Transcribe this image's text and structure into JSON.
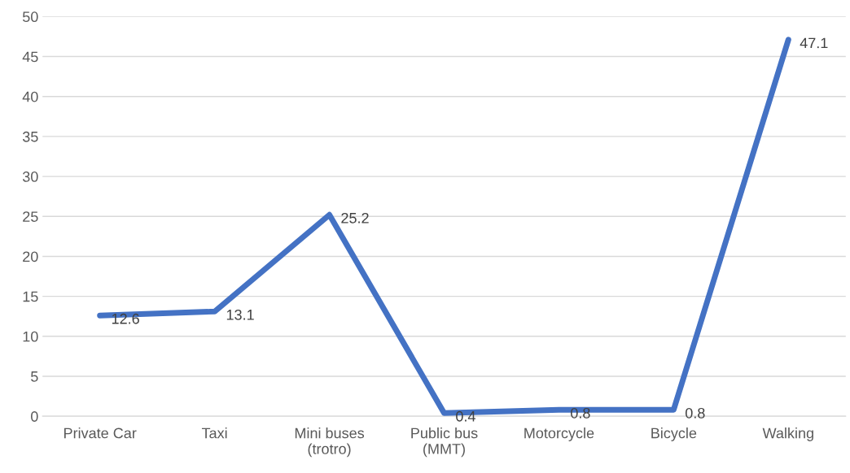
{
  "chart_data": {
    "type": "line",
    "categories": [
      "Private Car",
      "Taxi",
      "Mini buses\n(trotro)",
      "Public bus\n(MMT)",
      "Motorcycle",
      "Bicycle",
      "Walking"
    ],
    "values": [
      12.6,
      13.1,
      25.2,
      0.4,
      0.8,
      0.8,
      47.1
    ],
    "color": "#4472c4",
    "ylim": [
      0,
      50
    ],
    "yticks": [
      0,
      5,
      10,
      15,
      20,
      25,
      30,
      35,
      40,
      45,
      50
    ],
    "grid": "y",
    "data_labels": true,
    "marker": "none",
    "line_style": "solid"
  }
}
